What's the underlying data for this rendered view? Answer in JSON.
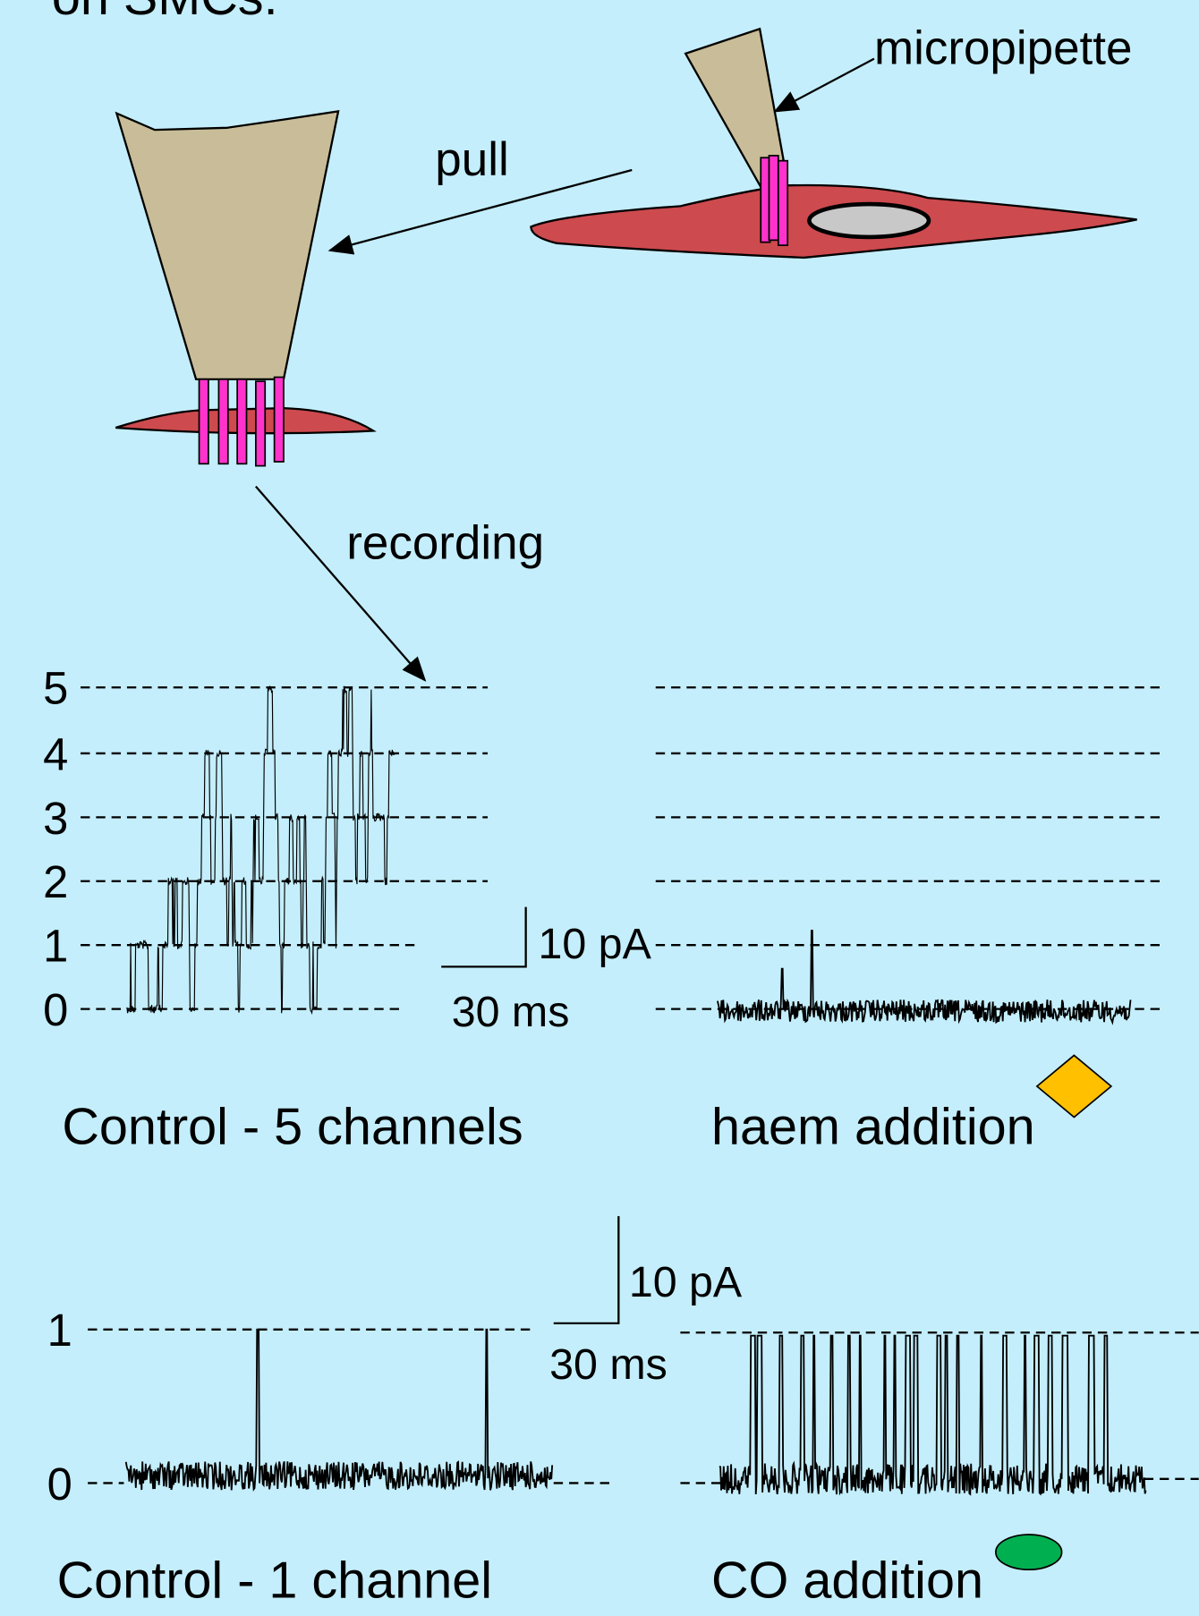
{
  "header": {
    "title": "on SMCs:"
  },
  "diagram": {
    "micropipette": "micropipette",
    "pull": "pull",
    "recording": "recording"
  },
  "panel_top": {
    "levels": [
      "5",
      "4",
      "3",
      "2",
      "1",
      "0"
    ],
    "scale_current": "10 pA",
    "scale_time": "30 ms",
    "left_caption": "Control - 5 channels",
    "right_caption": "haem addition"
  },
  "panel_bottom": {
    "levels": [
      "1",
      "0"
    ],
    "scale_current": "10 pA",
    "scale_time": "30 ms",
    "left_caption": "Control - 1 channel",
    "right_caption": "CO addition"
  }
}
